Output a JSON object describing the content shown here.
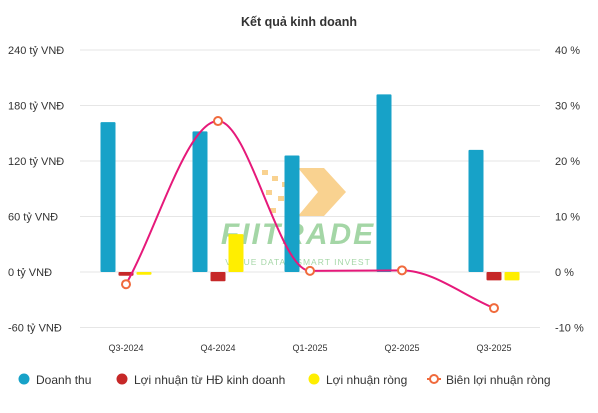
{
  "chart_data": {
    "type": "bar",
    "title": "Kết quả kinh doanh",
    "categories": [
      "Q3-2024",
      "Q4-2024",
      "Q1-2025",
      "Q2-2025",
      "Q3-2025"
    ],
    "y_left": {
      "ticks": [
        -60,
        0,
        60,
        120,
        180,
        240
      ],
      "tick_labels": [
        "-60 tỷ VNĐ",
        "0 tỷ VNĐ",
        "60 tỷ VNĐ",
        "120 tỷ VNĐ",
        "180 tỷ VNĐ",
        "240 tỷ VNĐ"
      ],
      "ylim": [
        -60,
        240
      ]
    },
    "y_right": {
      "ticks": [
        -10,
        0,
        10,
        20,
        30,
        40
      ],
      "tick_labels": [
        "-10 %",
        "0 %",
        "10 %",
        "20 %",
        "30 %",
        "40 %"
      ],
      "ylim": [
        -10,
        40
      ]
    },
    "grid": true,
    "legend_position": "bottom",
    "series": [
      {
        "name": "Doanh thu",
        "kind": "bar",
        "axis": "left",
        "color": "#17a2c8",
        "values": [
          162,
          152,
          126,
          192,
          132
        ]
      },
      {
        "name": "Lợi nhuận từ HĐ kinh doanh",
        "kind": "bar",
        "axis": "left",
        "color": "#c62828",
        "values": [
          -4,
          -10,
          0,
          0,
          -9
        ]
      },
      {
        "name": "Lợi nhuận ròng",
        "kind": "bar",
        "axis": "left",
        "color": "#ffee00",
        "values": [
          -3,
          41,
          0,
          0,
          -9
        ]
      },
      {
        "name": "Biên lợi nhuận ròng",
        "kind": "line",
        "axis": "right",
        "color": "#e6197a",
        "marker_color": "#f06a3c",
        "values": [
          -2.2,
          27.2,
          0.2,
          0.3,
          -6.5
        ]
      }
    ]
  },
  "watermark": {
    "brand": "FIITRADE",
    "tagline": "VALUE DATA - SMART INVEST",
    "colors": {
      "green": "#4caf50",
      "orange": "#f5a623"
    }
  }
}
